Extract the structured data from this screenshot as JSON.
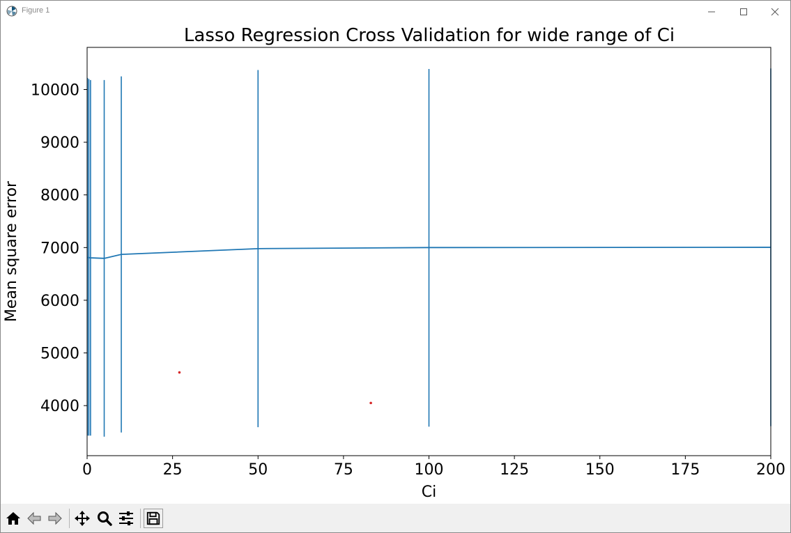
{
  "window": {
    "title": "Figure 1"
  },
  "chart_data": {
    "type": "line",
    "title": "Lasso Regression Cross Validation for wide range of Ci",
    "xlabel": "Ci",
    "ylabel": "Mean square error",
    "xlim": [
      0,
      200
    ],
    "ylim": [
      3050,
      10800
    ],
    "xticks": [
      0,
      25,
      50,
      75,
      100,
      125,
      150,
      175,
      200
    ],
    "yticks": [
      4000,
      5000,
      6000,
      7000,
      8000,
      9000,
      10000
    ],
    "grid": false,
    "color": "#1f77b4",
    "series": [
      {
        "x": [
          0.1,
          0.5,
          1,
          5,
          10,
          50,
          100,
          200
        ],
        "y": [
          6810,
          6810,
          6805,
          6795,
          6870,
          6980,
          7000,
          7005
        ],
        "error": [
          [
            3430,
            10220
          ],
          [
            3430,
            10200
          ],
          [
            3430,
            10180
          ],
          [
            3410,
            10180
          ],
          [
            3490,
            10250
          ],
          [
            3590,
            10370
          ],
          [
            3600,
            10390
          ],
          [
            3610,
            10400
          ]
        ]
      }
    ],
    "points": [
      {
        "x": 27,
        "y": 4630,
        "color": "#d62728"
      },
      {
        "x": 83,
        "y": 4050,
        "color": "#d62728"
      }
    ]
  },
  "toolbar": {
    "buttons": [
      {
        "name": "home-button",
        "icon": "home-icon"
      },
      {
        "name": "back-button",
        "icon": "arrow-left-icon"
      },
      {
        "name": "forward-button",
        "icon": "arrow-right-icon"
      },
      {
        "name": "pan-button",
        "icon": "move-icon"
      },
      {
        "name": "zoom-button",
        "icon": "magnifier-icon"
      },
      {
        "name": "configure-subplots-button",
        "icon": "sliders-icon"
      },
      {
        "name": "save-button",
        "icon": "floppy-icon"
      }
    ]
  }
}
